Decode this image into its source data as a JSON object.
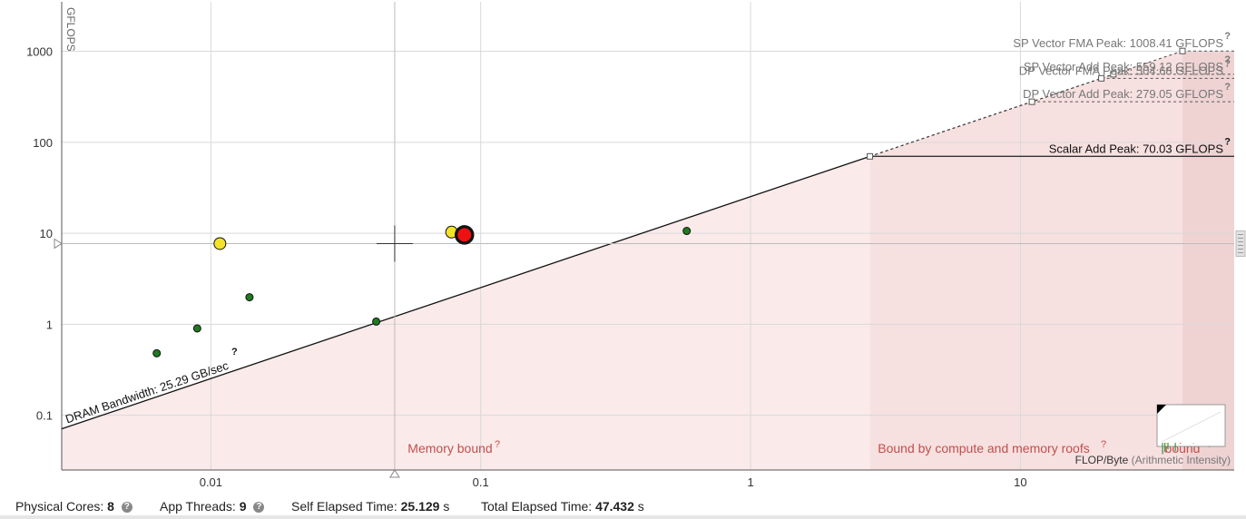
{
  "chart_data": {
    "type": "scatter",
    "subtype": "roofline",
    "xscale": "log",
    "yscale": "log",
    "xlim": [
      0.0028,
      62
    ],
    "ylim": [
      0.025,
      3500
    ],
    "ylabel": "GFLOPS",
    "xlabel_main": "FLOP/Byte",
    "xlabel_paren": "(Arithmetic Intensity)",
    "x_ticks": [
      "0.01",
      "0.1",
      "1",
      "10"
    ],
    "x_tick_values": [
      0.01,
      0.1,
      1,
      10
    ],
    "y_ticks": [
      "0.1",
      "1",
      "10",
      "100",
      "1000"
    ],
    "y_tick_values": [
      0.1,
      1,
      10,
      100,
      1000
    ],
    "grid": true,
    "memory_roof": {
      "label": "DRAM Bandwidth: 25.29 GB/sec",
      "bandwidth_gbps": 25.29,
      "help": "?"
    },
    "compute_roofs": [
      {
        "label": "SP Vector FMA Peak: 1008.41 GFLOPS",
        "value": 1008.41,
        "style": "dashed"
      },
      {
        "label": "SP Vector Add Peak: 559.12 GFLOPS",
        "value": 559.12,
        "style": "dashed"
      },
      {
        "label": "DP Vector FMA Peak: 504.68 GFLOPS",
        "value": 504.68,
        "style": "dashed"
      },
      {
        "label": "DP Vector Add Peak: 279.05 GFLOPS",
        "value": 279.05,
        "style": "dashed"
      },
      {
        "label": "Scalar Add Peak: 70.03 GFLOPS",
        "value": 70.03,
        "style": "solid"
      }
    ],
    "roof_help": "?",
    "regions": [
      {
        "label": "Memory bound",
        "help": "?"
      },
      {
        "label": "Bound by compute and memory roofs",
        "help": "?"
      },
      {
        "label": "bound",
        "help": "?"
      }
    ],
    "loops": [
      {
        "x": 0.0063,
        "y": 0.48,
        "color": "#1e7b1e",
        "size": "small"
      },
      {
        "x": 0.0089,
        "y": 0.9,
        "color": "#1e7b1e",
        "size": "small"
      },
      {
        "x": 0.0139,
        "y": 1.98,
        "color": "#1e7b1e",
        "size": "small"
      },
      {
        "x": 0.041,
        "y": 1.07,
        "color": "#1e7b1e",
        "size": "small"
      },
      {
        "x": 0.58,
        "y": 10.6,
        "color": "#1e7b1e",
        "size": "small"
      },
      {
        "x": 0.0108,
        "y": 7.7,
        "color": "#f4e22a",
        "size": "medium"
      },
      {
        "x": 0.078,
        "y": 10.3,
        "color": "#f4e22a",
        "size": "medium"
      },
      {
        "x": 0.087,
        "y": 9.6,
        "color": "#ee1111",
        "size": "large"
      }
    ],
    "crosshair": {
      "x": 0.048,
      "y": 7.7
    }
  },
  "status": {
    "physical_cores_label": "Physical Cores:",
    "physical_cores_value": "8",
    "app_threads_label": "App Threads:",
    "app_threads_value": "9",
    "self_time_label": "Self Elapsed Time:",
    "self_time_value": "25.129",
    "self_time_unit": "s",
    "total_time_label": "Total Elapsed Time:",
    "total_time_value": "47.432",
    "total_time_unit": "s",
    "help_glyph": "?"
  },
  "colors": {
    "memory_region": "#fbeaea",
    "compute_region": "#f7e0e0",
    "top_region": "#efd3d3",
    "region_text": "#c0504d",
    "roof_label": "#777777",
    "grid": "#d9d9d9"
  }
}
